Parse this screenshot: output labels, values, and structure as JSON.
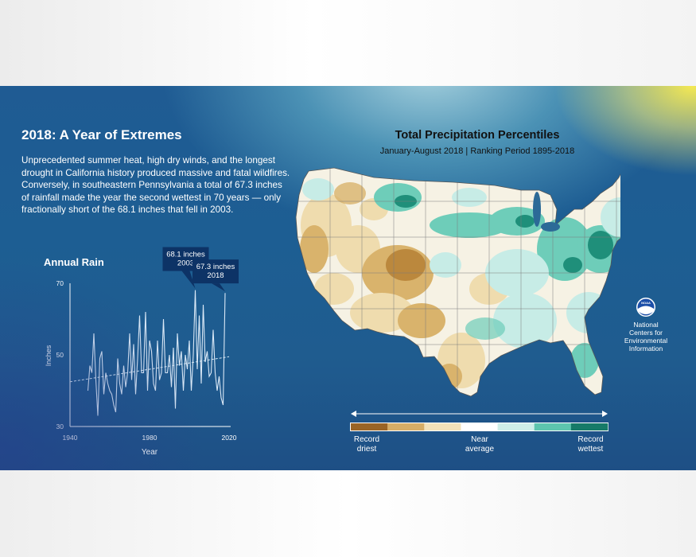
{
  "headline": "2018: A Year of Extremes",
  "intro": "Unprecedented summer heat, high dry winds, and the longest drought in California history produced massive and fatal wildfires. Conversely, in southeastern Pennsylvania a total of 67.3 inches of rainfall made the year the second wettest in 70 years — only fractionally short of the 68.1 inches that fell in 2003.",
  "map": {
    "title": "Total Precipitation Percentiles",
    "subtitle": "January-August 2018 | Ranking Period 1895-2018",
    "colors": {
      "dry_strong": "#b07a2e",
      "dry": "#d9b36c",
      "dry_light": "#efdcae",
      "near": "#f7f7f2",
      "wet_light": "#c7ece6",
      "wet": "#6ecdb9",
      "wet_strong": "#1f8f7a"
    }
  },
  "legend": {
    "colors": [
      "#9a6425",
      "#d6ad66",
      "#f2e1b9",
      "#ffffff",
      "#cdeee8",
      "#5dc5ae",
      "#167a68"
    ],
    "left_label": "Record\ndriest",
    "center_label": "Near\naverage",
    "right_label": "Record\nwettest"
  },
  "ncei": {
    "logo_text": "NOAA",
    "label": "National\nCenters for\nEnvironmental\nInformation"
  },
  "chart_data": {
    "type": "line",
    "title": "Annual Rain",
    "xlabel": "Year",
    "ylabel": "Inches",
    "xlim": [
      1940,
      2020
    ],
    "ylim": [
      30,
      70
    ],
    "x_ticks": [
      1940,
      1980,
      2020
    ],
    "y_ticks": [
      30,
      50,
      70
    ],
    "grid": false,
    "series": [
      {
        "x": [
          1949,
          1950,
          1951,
          1952,
          1953,
          1954,
          1955,
          1956,
          1957,
          1958,
          1959,
          1960,
          1961,
          1962,
          1963,
          1964,
          1965,
          1966,
          1967,
          1968,
          1969,
          1970,
          1971,
          1972,
          1973,
          1974,
          1975,
          1976,
          1977,
          1978,
          1979,
          1980,
          1981,
          1982,
          1983,
          1984,
          1985,
          1986,
          1987,
          1988,
          1989,
          1990,
          1991,
          1992,
          1993,
          1994,
          1995,
          1996,
          1997,
          1998,
          1999,
          2000,
          2001,
          2002,
          2003,
          2004,
          2005,
          2006,
          2007,
          2008,
          2009,
          2010,
          2011,
          2012,
          2013,
          2014,
          2015,
          2016,
          2017,
          2018
        ],
        "values": [
          40,
          47,
          45,
          56,
          43,
          33,
          49,
          51,
          39,
          45,
          42,
          40,
          39,
          36,
          34,
          49,
          42,
          39,
          47,
          41,
          45,
          56,
          43,
          53,
          39,
          49,
          61,
          45,
          45,
          62,
          40,
          54,
          51,
          42,
          40,
          54,
          43,
          45,
          60,
          45,
          45,
          50,
          41,
          52,
          35,
          56,
          47,
          51,
          40,
          50,
          46,
          54,
          40,
          50,
          68.1,
          46,
          61,
          42,
          64,
          48,
          51,
          44,
          45,
          57,
          45,
          40,
          44,
          38,
          36,
          67.3
        ]
      }
    ],
    "trend": {
      "x": [
        1940,
        2020
      ],
      "values": [
        42.5,
        49.5
      ]
    },
    "annotations": [
      {
        "text": "68.1 inches\n2003",
        "x": 2003,
        "y": 68.1
      },
      {
        "text": "67.3 inches\n2018",
        "x": 2018,
        "y": 67.3
      }
    ]
  }
}
